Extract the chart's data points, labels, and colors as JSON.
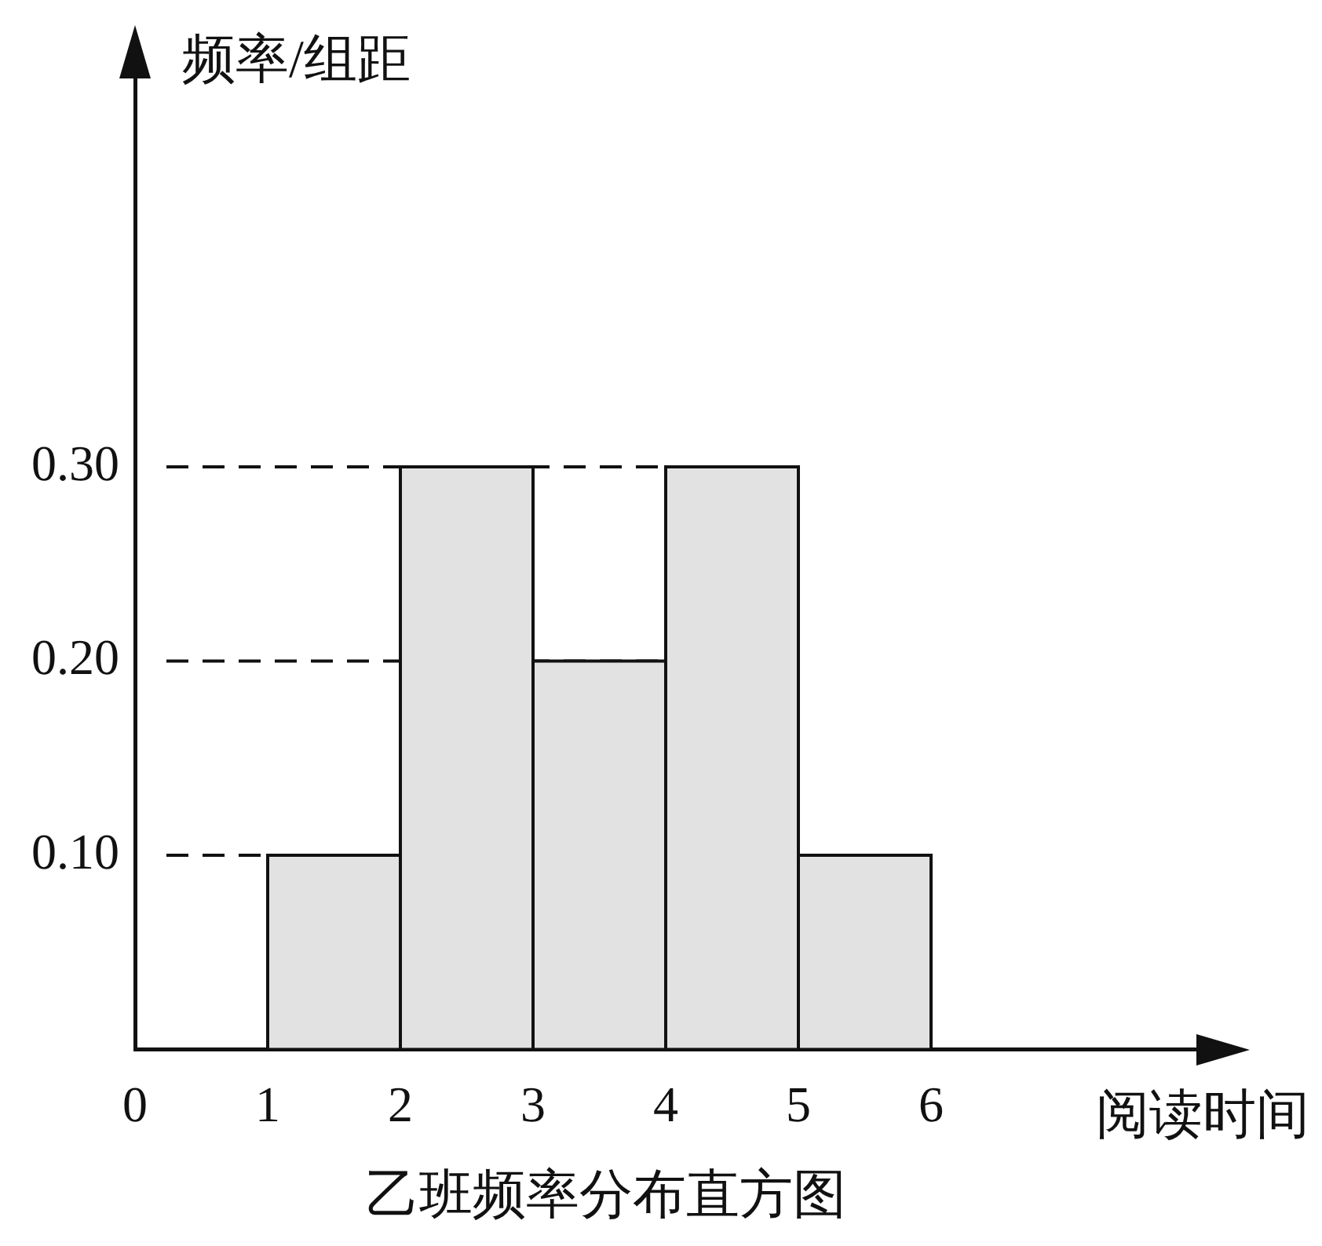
{
  "chart_data": {
    "type": "histogram",
    "title": "乙班频率分布直方图",
    "xlabel": "阅读时间",
    "ylabel": "频率/组距",
    "bins": [
      1,
      2,
      3,
      4,
      5,
      6
    ],
    "values": [
      0.1,
      0.3,
      0.2,
      0.3,
      0.1
    ],
    "color": "#e2e2e2",
    "xlim": [
      0,
      8
    ],
    "xticks": [
      0,
      1,
      2,
      3,
      4,
      5,
      6
    ],
    "ylim": [
      0,
      0.5
    ],
    "yticks": [
      {
        "value": 0.1,
        "label": "0.10"
      },
      {
        "value": 0.2,
        "label": "0.20"
      },
      {
        "value": 0.3,
        "label": "0.30"
      }
    ],
    "ref_lines": [
      {
        "axis": "y",
        "value": 0.1,
        "line_style": "dashed"
      },
      {
        "axis": "y",
        "value": 0.2,
        "line_style": "dashed"
      },
      {
        "axis": "y",
        "value": 0.3,
        "line_style": "dashed"
      }
    ],
    "grid": false,
    "legend": false
  }
}
